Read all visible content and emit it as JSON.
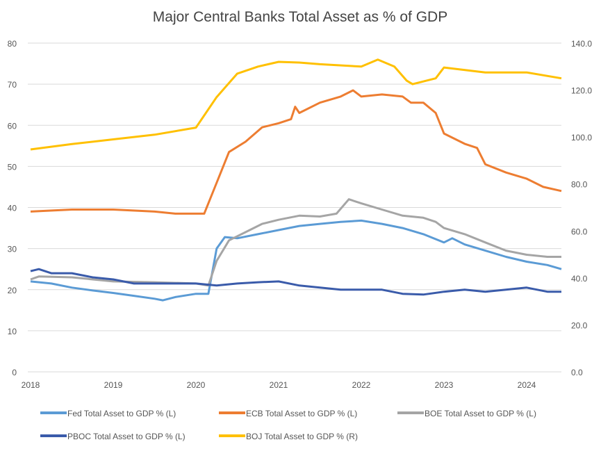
{
  "chart_data": {
    "type": "line",
    "title": "Major Central Banks Total Asset as % of GDP",
    "xlabel": "",
    "ylabel_left": "",
    "ylabel_right": "",
    "xlim": [
      2018,
      2024.42
    ],
    "ylim_left": [
      0,
      80
    ],
    "ylim_right": [
      0,
      140
    ],
    "x_ticks": [
      "2018",
      "2019",
      "2020",
      "2021",
      "2022",
      "2023",
      "2024"
    ],
    "y_ticks_left": [
      "0",
      "10",
      "20",
      "30",
      "40",
      "50",
      "60",
      "70",
      "80"
    ],
    "y_ticks_right": [
      "0.0",
      "20.0",
      "40.0",
      "60.0",
      "80.0",
      "100.0",
      "120.0",
      "140.0"
    ],
    "grid": true,
    "legend_position": "bottom",
    "series": [
      {
        "name": "Fed Total Asset to GDP % (L)",
        "axis": "left",
        "color": "#5B9BD5",
        "x": [
          2018,
          2018.25,
          2018.5,
          2018.75,
          2019,
          2019.25,
          2019.5,
          2019.6,
          2019.75,
          2020,
          2020.15,
          2020.25,
          2020.35,
          2020.5,
          2020.75,
          2021,
          2021.25,
          2021.5,
          2021.75,
          2022,
          2022.25,
          2022.5,
          2022.75,
          2023,
          2023.1,
          2023.25,
          2023.5,
          2023.75,
          2024,
          2024.25,
          2024.42
        ],
        "y": [
          22,
          21.5,
          20.5,
          19.8,
          19.2,
          18.5,
          17.8,
          17.4,
          18.2,
          19,
          19,
          30,
          32.8,
          32.5,
          33.5,
          34.5,
          35.5,
          36,
          36.5,
          36.8,
          36,
          35,
          33.5,
          31.5,
          32.5,
          31,
          29.5,
          28,
          26.8,
          26,
          25
        ]
      },
      {
        "name": "ECB Total Asset to GDP % (L)",
        "axis": "left",
        "color": "#ED7D31",
        "x": [
          2018,
          2018.5,
          2019,
          2019.5,
          2019.75,
          2020.1,
          2020.25,
          2020.4,
          2020.6,
          2020.8,
          2021,
          2021.15,
          2021.2,
          2021.25,
          2021.5,
          2021.75,
          2021.9,
          2022,
          2022.25,
          2022.5,
          2022.6,
          2022.75,
          2022.9,
          2023,
          2023.25,
          2023.4,
          2023.5,
          2023.75,
          2024,
          2024.2,
          2024.42
        ],
        "y": [
          39,
          39.5,
          39.5,
          39,
          38.5,
          38.5,
          46,
          53.5,
          56,
          59.5,
          60.5,
          61.5,
          64.5,
          63,
          65.5,
          67,
          68.5,
          67,
          67.5,
          67,
          65.5,
          65.5,
          63,
          58,
          55.5,
          54.5,
          50.5,
          48.5,
          47,
          45,
          44
        ]
      },
      {
        "name": "BOE Total Asset to GDP % (L)",
        "axis": "left",
        "color": "#A5A5A5",
        "x": [
          2018,
          2018.1,
          2018.5,
          2019,
          2019.5,
          2020,
          2020.15,
          2020.25,
          2020.4,
          2020.6,
          2020.8,
          2021,
          2021.25,
          2021.5,
          2021.7,
          2021.85,
          2022,
          2022.25,
          2022.5,
          2022.75,
          2022.9,
          2023,
          2023.25,
          2023.5,
          2023.75,
          2024,
          2024.25,
          2024.42
        ],
        "y": [
          22.5,
          23.2,
          23,
          22,
          21.8,
          21.5,
          21,
          27,
          32,
          34,
          36,
          37,
          38,
          37.8,
          38.5,
          42,
          41,
          39.5,
          38,
          37.5,
          36.5,
          35,
          33.5,
          31.5,
          29.5,
          28.5,
          28,
          28
        ]
      },
      {
        "name": "PBOC Total Asset to GDP % (L)",
        "axis": "left",
        "color": "#3A5BAA",
        "x": [
          2018,
          2018.1,
          2018.25,
          2018.5,
          2018.75,
          2019,
          2019.25,
          2019.5,
          2020,
          2020.25,
          2020.5,
          2020.75,
          2021,
          2021.25,
          2021.5,
          2021.75,
          2022,
          2022.25,
          2022.5,
          2022.75,
          2023,
          2023.25,
          2023.5,
          2023.75,
          2024,
          2024.25,
          2024.42
        ],
        "y": [
          24.5,
          25,
          24,
          24,
          23,
          22.5,
          21.5,
          21.5,
          21.5,
          21,
          21.5,
          21.8,
          22,
          21,
          20.5,
          20,
          20,
          20,
          19,
          18.8,
          19.5,
          20,
          19.5,
          20,
          20.5,
          19.5,
          19.5
        ]
      },
      {
        "name": "BOJ Total Asset to GDP % (R)",
        "axis": "right",
        "color": "#FFC000",
        "x": [
          2018,
          2018.5,
          2019,
          2019.5,
          2020,
          2020.25,
          2020.5,
          2020.75,
          2021,
          2021.25,
          2021.5,
          2022,
          2022.2,
          2022.4,
          2022.55,
          2022.62,
          2022.9,
          2023,
          2023.5,
          2024,
          2024.42
        ],
        "y": [
          94.7,
          97,
          99,
          101,
          104,
          117,
          127,
          130,
          132,
          131.7,
          131,
          130,
          133,
          130,
          124,
          122.5,
          125,
          129.6,
          127.5,
          127.5,
          125
        ]
      }
    ]
  }
}
